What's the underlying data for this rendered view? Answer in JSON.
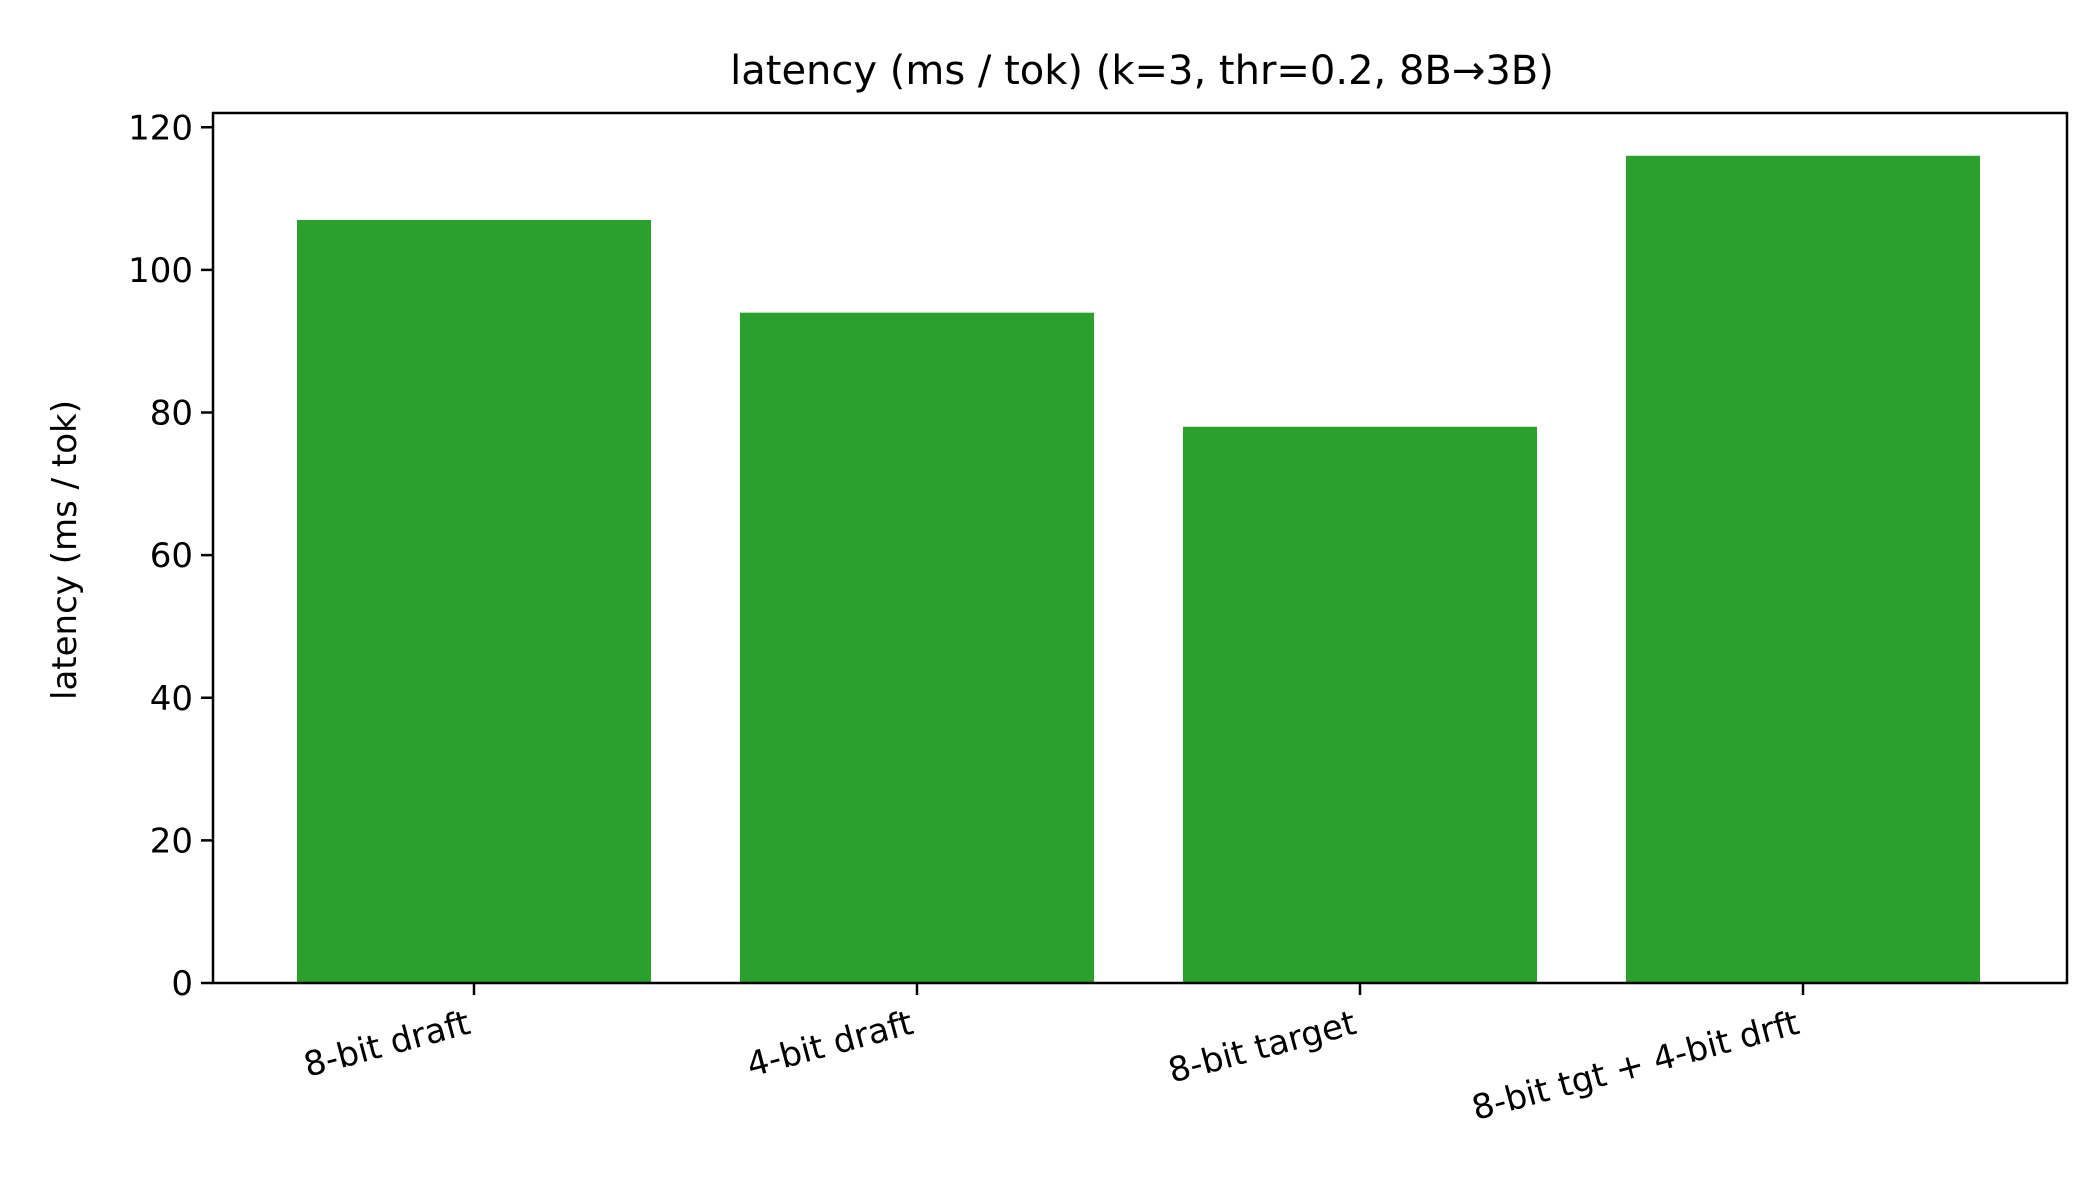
{
  "chart_data": {
    "type": "bar",
    "title": "latency (ms / tok) (k=3, thr=0.2, 8B→3B)",
    "xlabel": "",
    "ylabel": "latency (ms / tok)",
    "categories": [
      "8-bit draft",
      "4-bit draft",
      "8-bit target",
      "8-bit tgt + 4-bit drft"
    ],
    "values": [
      107,
      94,
      78,
      116
    ],
    "ylim": [
      0,
      122
    ],
    "yticks": [
      0,
      20,
      40,
      60,
      80,
      100,
      120
    ],
    "grid": false,
    "legend": "none",
    "bar_color": "#2ca02c"
  }
}
